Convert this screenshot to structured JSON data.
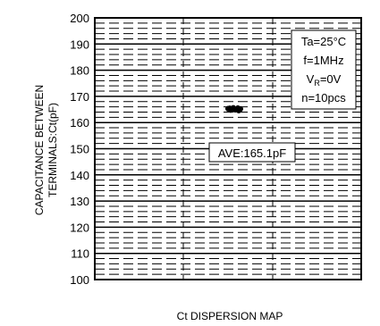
{
  "chart_data": {
    "type": "scatter",
    "title": "",
    "xlabel": "Ct DISPERSION MAP",
    "ylabel_lines": [
      "CAPACITANCE BETWEEN",
      "TERMINALS:Ct(pF)"
    ],
    "ylim": [
      100,
      200
    ],
    "yticks": [
      "100",
      "110",
      "120",
      "130",
      "140",
      "150",
      "160",
      "170",
      "180",
      "190",
      "200"
    ],
    "grid": true,
    "points": [
      {
        "x": 1,
        "y": 165.3
      },
      {
        "x": 1,
        "y": 164.8
      },
      {
        "x": 1,
        "y": 165.6
      },
      {
        "x": 1,
        "y": 165.0
      },
      {
        "x": 1,
        "y": 164.6
      },
      {
        "x": 1,
        "y": 165.4
      },
      {
        "x": 1,
        "y": 165.1
      },
      {
        "x": 1,
        "y": 164.9
      },
      {
        "x": 1,
        "y": 165.5
      },
      {
        "x": 1,
        "y": 165.2
      }
    ],
    "conditions": {
      "ta_prefix": "Ta=",
      "ta_value": "25°C",
      "freq": "f=1MHz",
      "vr_main": "V",
      "vr_sub": "R",
      "vr_value": "=0V",
      "n": "n=10pcs"
    },
    "average_label": "AVE:165.1pF"
  }
}
